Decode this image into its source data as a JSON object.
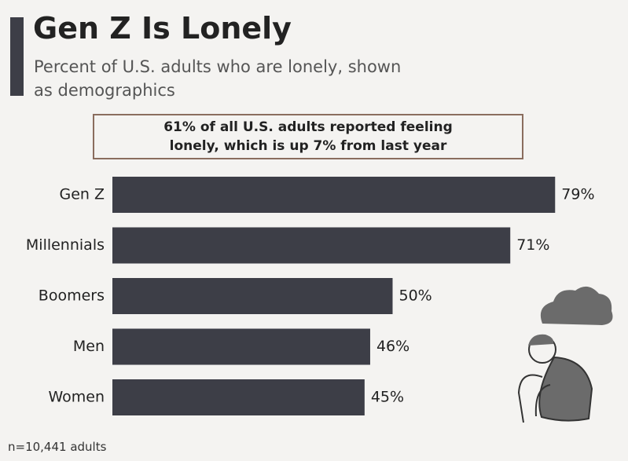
{
  "chart_data": {
    "type": "bar",
    "orientation": "horizontal",
    "title": "Gen Z Is Lonely",
    "subtitle": "Percent of U.S. adults who are lonely, shown as demographics",
    "annotation": "61% of all U.S. adults reported feeling lonely, which is up 7% from last year",
    "categories": [
      "Gen Z",
      "Millennials",
      "Boomers",
      "Men",
      "Women"
    ],
    "values": [
      79,
      71,
      50,
      46,
      45
    ],
    "value_labels": [
      "79%",
      "71%",
      "50%",
      "46%",
      "45%"
    ],
    "color": "#3d3e47",
    "note": "n=10,441 adults"
  }
}
